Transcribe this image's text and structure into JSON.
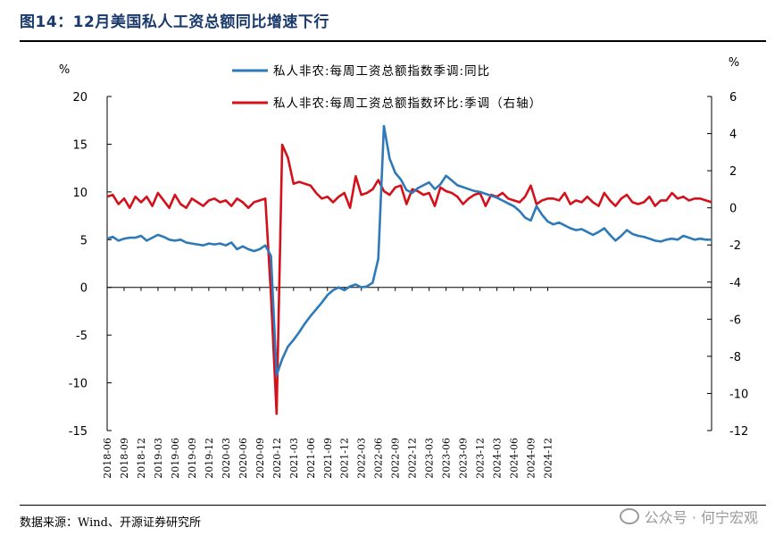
{
  "title": "图14：12月美国私人工资总额同比增速下行",
  "source": "数据来源：Wind、开源证券研究所",
  "watermark": "公众号 · 何宁宏观",
  "chart_data": {
    "type": "line",
    "left_unit": "%",
    "right_unit": "%",
    "left_ylim": [
      -15,
      20
    ],
    "right_ylim": [
      -12,
      6
    ],
    "left_ticks": [
      -15,
      -10,
      -5,
      0,
      5,
      10,
      15,
      20
    ],
    "right_ticks": [
      -12,
      -10,
      -8,
      -6,
      -4,
      -2,
      0,
      2,
      4,
      6
    ],
    "x_range": [
      "2018-06",
      "2024-12"
    ],
    "x_tick_labels": [
      "2018-06",
      "2018-09",
      "2018-12",
      "2019-03",
      "2019-06",
      "2019-09",
      "2019-12",
      "2020-03",
      "2020-06",
      "2020-09",
      "2020-12",
      "2021-03",
      "2021-06",
      "2021-09",
      "2021-12",
      "2022-03",
      "2022-06",
      "2022-09",
      "2022-12",
      "2023-03",
      "2023-06",
      "2023-09",
      "2023-12",
      "2024-03",
      "2024-06",
      "2024-09",
      "2024-12"
    ],
    "colors": {
      "yoy": "#2e7ab8",
      "mom": "#d4111b"
    },
    "series": [
      {
        "name": "私人非农:每周工资总额指数季调:同比",
        "axis": "left",
        "values": [
          5.1,
          5.3,
          4.9,
          5.1,
          5.2,
          5.2,
          5.4,
          4.9,
          5.2,
          5.5,
          5.3,
          5.0,
          4.9,
          5.0,
          4.7,
          4.6,
          4.5,
          4.4,
          4.6,
          4.5,
          4.6,
          4.4,
          4.7,
          4.0,
          4.3,
          4.0,
          3.8,
          4.0,
          4.4,
          3.3,
          -9.2,
          -7.5,
          -6.2,
          -5.5,
          -4.7,
          -3.8,
          -3.0,
          -2.3,
          -1.6,
          -0.8,
          -0.3,
          0.0,
          -0.3,
          0.1,
          0.3,
          0.0,
          0.1,
          0.5,
          3.0,
          16.9,
          13.5,
          12.0,
          11.3,
          10.2,
          9.9,
          10.4,
          10.7,
          11.0,
          10.3,
          10.8,
          11.7,
          11.2,
          10.7,
          10.5,
          10.3,
          10.1,
          10.0,
          9.8,
          9.6,
          9.4,
          9.1,
          8.8,
          8.5,
          8.0,
          7.3,
          7.0,
          8.5,
          7.6,
          6.9,
          6.6,
          6.8,
          6.5,
          6.2,
          6.0,
          6.1,
          5.8,
          5.5,
          5.8,
          6.2,
          5.5,
          4.9,
          5.4,
          6.0,
          5.6,
          5.4,
          5.3,
          5.1,
          4.9,
          4.8,
          5.0,
          5.1,
          5.0,
          5.4,
          5.2,
          5.0,
          5.1,
          5.0,
          5.0
        ]
      },
      {
        "name": "私人非农:每周工资总额指数环比:季调（右轴）",
        "axis": "right",
        "values": [
          0.6,
          0.7,
          0.2,
          0.5,
          0.0,
          0.6,
          0.3,
          0.6,
          0.1,
          0.8,
          0.4,
          0.0,
          0.7,
          0.2,
          0.0,
          0.5,
          0.3,
          0.1,
          0.4,
          0.5,
          0.3,
          0.4,
          0.1,
          0.5,
          0.3,
          0.0,
          0.3,
          0.4,
          0.5,
          -4.7,
          -11.1,
          3.4,
          2.7,
          1.3,
          1.4,
          1.3,
          1.2,
          0.8,
          0.5,
          0.6,
          0.3,
          0.6,
          0.8,
          0.0,
          1.7,
          0.7,
          0.8,
          1.0,
          1.5,
          0.9,
          0.7,
          1.1,
          1.2,
          0.2,
          1.0,
          0.9,
          0.7,
          0.8,
          0.1,
          1.1,
          0.9,
          0.8,
          0.6,
          0.2,
          0.5,
          0.7,
          0.8,
          0.1,
          0.7,
          0.6,
          0.8,
          0.5,
          0.4,
          0.3,
          0.6,
          1.2,
          0.2,
          0.4,
          0.5,
          0.5,
          0.4,
          0.8,
          0.2,
          0.4,
          0.3,
          0.6,
          0.3,
          0.1,
          0.8,
          0.4,
          0.1,
          0.5,
          0.7,
          0.3,
          0.2,
          0.3,
          0.6,
          0.1,
          0.4,
          0.4,
          0.8,
          0.5,
          0.6,
          0.4,
          0.5,
          0.5,
          0.4,
          0.3
        ]
      }
    ]
  }
}
